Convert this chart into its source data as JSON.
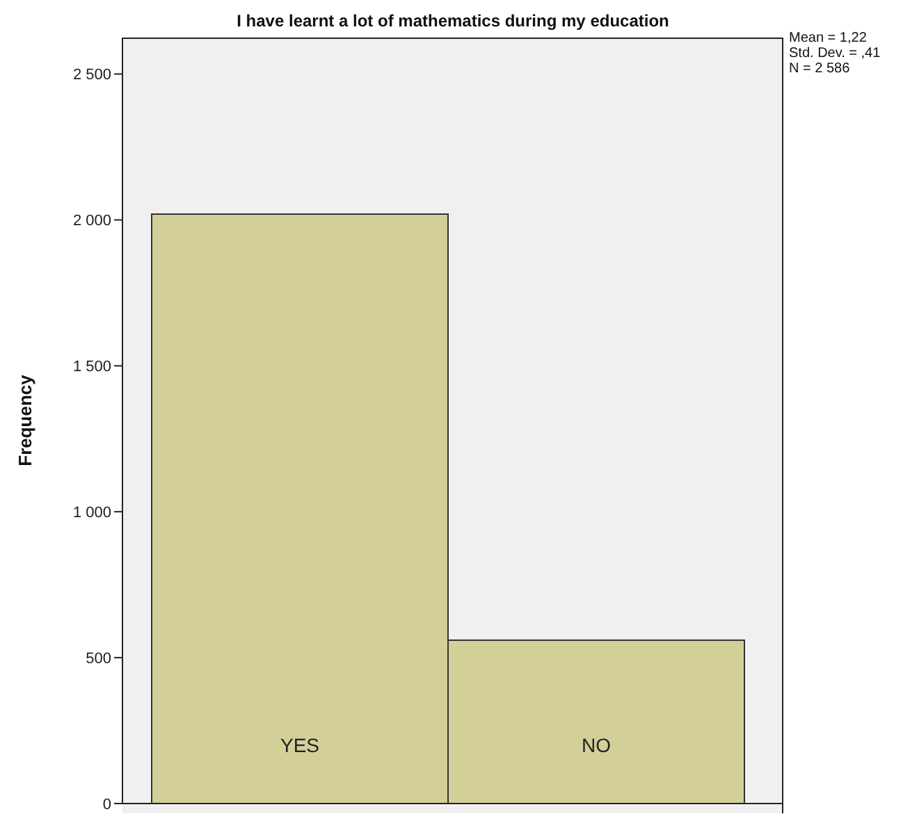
{
  "chart_data": {
    "type": "bar",
    "title": "I have learnt a lot of mathematics during my education",
    "ylabel": "Frequency",
    "categories": [
      "YES",
      "NO"
    ],
    "values": [
      2020,
      560
    ],
    "color": "#d3cf98",
    "ylim": [
      0,
      2625
    ],
    "yticks": [
      0,
      500,
      {
        "value": 1000,
        "label": "1 000"
      },
      {
        "value": 1500,
        "label": "1 500"
      },
      {
        "value": 2000,
        "label": "2 000"
      },
      {
        "value": 2500,
        "label": "2 500"
      }
    ],
    "grid": false,
    "annotations": [
      "Mean = 1,22",
      "Std. Dev. = ,41",
      "N = 2 586"
    ]
  }
}
